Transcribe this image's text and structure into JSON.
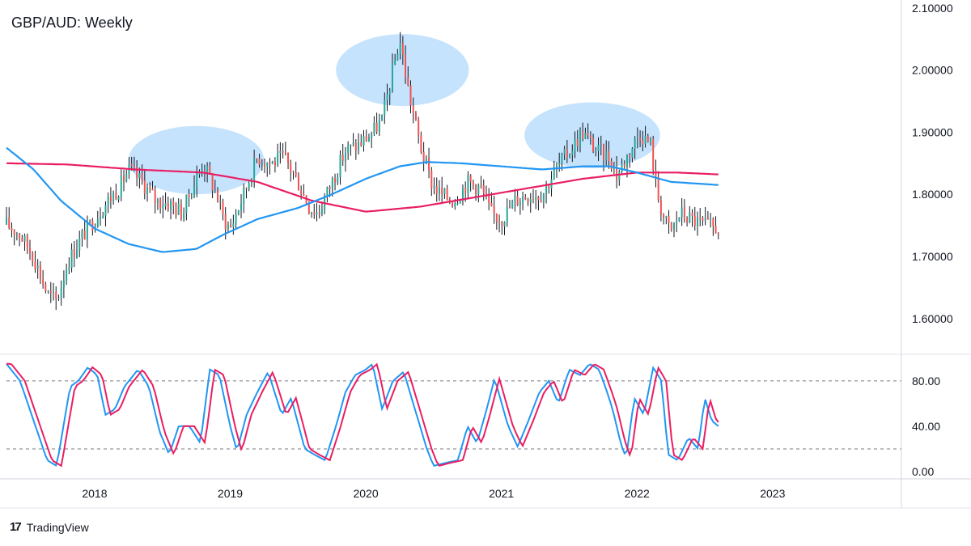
{
  "title": "GBP/AUD: Weekly",
  "brand": {
    "name": "TradingView",
    "logo_icon": "tradingview-logo-icon"
  },
  "chart_data": {
    "type": "candlestick",
    "title": "GBP/AUD: Weekly",
    "price_axis": {
      "ticks": [
        "2.10000",
        "2.00000",
        "1.90000",
        "1.80000",
        "1.70000",
        "1.60000"
      ],
      "tick_values": [
        2.1,
        2.0,
        1.9,
        1.8,
        1.7,
        1.6
      ],
      "range": [
        1.545,
        2.105
      ]
    },
    "time_axis": {
      "ticks": [
        "2018",
        "2019",
        "2020",
        "2021",
        "2022",
        "2023"
      ],
      "tick_years": [
        2018,
        2019,
        2020,
        2021,
        2022,
        2023
      ],
      "range": [
        2017.35,
        2023.95
      ]
    },
    "colors": {
      "up_candle": "#26a69a",
      "down_candle": "#ef5350",
      "candle_wick": "#131722",
      "ma_slow": "#e91e63",
      "ma_fast": "#2196f3",
      "stoch_k": "#2196f3",
      "stoch_d": "#e91e63",
      "highlight": "#bbdefb"
    },
    "close_anchors": [
      [
        2017.35,
        1.752
      ],
      [
        2017.45,
        1.735
      ],
      [
        2017.55,
        1.7
      ],
      [
        2017.65,
        1.64
      ],
      [
        2017.72,
        1.628
      ],
      [
        2017.8,
        1.69
      ],
      [
        2017.9,
        1.73
      ],
      [
        2018.0,
        1.76
      ],
      [
        2018.1,
        1.79
      ],
      [
        2018.18,
        1.81
      ],
      [
        2018.25,
        1.84
      ],
      [
        2018.35,
        1.82
      ],
      [
        2018.45,
        1.79
      ],
      [
        2018.55,
        1.785
      ],
      [
        2018.65,
        1.77
      ],
      [
        2018.7,
        1.8
      ],
      [
        2018.8,
        1.85
      ],
      [
        2018.9,
        1.8
      ],
      [
        2018.95,
        1.76
      ],
      [
        2019.0,
        1.745
      ],
      [
        2019.1,
        1.8
      ],
      [
        2019.2,
        1.86
      ],
      [
        2019.3,
        1.85
      ],
      [
        2019.4,
        1.86
      ],
      [
        2019.5,
        1.82
      ],
      [
        2019.58,
        1.78
      ],
      [
        2019.65,
        1.77
      ],
      [
        2019.75,
        1.82
      ],
      [
        2019.85,
        1.87
      ],
      [
        2019.95,
        1.88
      ],
      [
        2020.05,
        1.9
      ],
      [
        2020.12,
        1.92
      ],
      [
        2020.2,
        2.0
      ],
      [
        2020.25,
        2.05
      ],
      [
        2020.32,
        1.96
      ],
      [
        2020.4,
        1.88
      ],
      [
        2020.48,
        1.82
      ],
      [
        2020.55,
        1.8
      ],
      [
        2020.65,
        1.79
      ],
      [
        2020.75,
        1.82
      ],
      [
        2020.85,
        1.81
      ],
      [
        2020.92,
        1.77
      ],
      [
        2021.0,
        1.76
      ],
      [
        2021.1,
        1.79
      ],
      [
        2021.2,
        1.8
      ],
      [
        2021.3,
        1.8
      ],
      [
        2021.4,
        1.84
      ],
      [
        2021.5,
        1.87
      ],
      [
        2021.6,
        1.9
      ],
      [
        2021.7,
        1.87
      ],
      [
        2021.8,
        1.86
      ],
      [
        2021.85,
        1.83
      ],
      [
        2021.95,
        1.87
      ],
      [
        2022.02,
        1.9
      ],
      [
        2022.1,
        1.88
      ],
      [
        2022.15,
        1.8
      ],
      [
        2022.2,
        1.76
      ],
      [
        2022.25,
        1.74
      ],
      [
        2022.32,
        1.77
      ],
      [
        2022.4,
        1.76
      ],
      [
        2022.5,
        1.75
      ],
      [
        2022.6,
        1.745
      ]
    ],
    "moving_averages": [
      {
        "color_key": "ma_slow",
        "points": [
          [
            2017.35,
            1.85
          ],
          [
            2017.8,
            1.848
          ],
          [
            2018.3,
            1.84
          ],
          [
            2018.8,
            1.835
          ],
          [
            2019.2,
            1.82
          ],
          [
            2019.6,
            1.79
          ],
          [
            2020.0,
            1.772
          ],
          [
            2020.4,
            1.78
          ],
          [
            2020.8,
            1.795
          ],
          [
            2021.2,
            1.81
          ],
          [
            2021.6,
            1.825
          ],
          [
            2022.0,
            1.835
          ],
          [
            2022.3,
            1.835
          ],
          [
            2022.6,
            1.832
          ]
        ]
      },
      {
        "color_key": "ma_fast",
        "points": [
          [
            2017.35,
            1.875
          ],
          [
            2017.55,
            1.84
          ],
          [
            2017.75,
            1.79
          ],
          [
            2018.0,
            1.745
          ],
          [
            2018.25,
            1.72
          ],
          [
            2018.5,
            1.707
          ],
          [
            2018.75,
            1.712
          ],
          [
            2018.95,
            1.735
          ],
          [
            2019.2,
            1.76
          ],
          [
            2019.5,
            1.778
          ],
          [
            2019.75,
            1.8
          ],
          [
            2020.0,
            1.825
          ],
          [
            2020.25,
            1.845
          ],
          [
            2020.45,
            1.852
          ],
          [
            2020.7,
            1.85
          ],
          [
            2021.0,
            1.845
          ],
          [
            2021.3,
            1.84
          ],
          [
            2021.6,
            1.845
          ],
          [
            2021.8,
            1.845
          ],
          [
            2022.0,
            1.835
          ],
          [
            2022.25,
            1.82
          ],
          [
            2022.6,
            1.815
          ]
        ]
      }
    ],
    "highlights": [
      {
        "label": "",
        "center": [
          2018.75,
          1.855
        ],
        "radius_years": 0.5,
        "radius_price": 0.055
      },
      {
        "label": "",
        "center": [
          2020.27,
          2.0
        ],
        "radius_years": 0.49,
        "radius_price": 0.058
      },
      {
        "label": "",
        "center": [
          2021.67,
          1.895
        ],
        "radius_years": 0.5,
        "radius_price": 0.053
      }
    ],
    "stochastic": {
      "y_ticks": [
        "80.00",
        "40.00",
        "0.00"
      ],
      "y_tick_values": [
        80,
        40,
        0
      ],
      "range": [
        -5,
        102
      ],
      "levels": [
        80,
        20
      ],
      "anchors": [
        [
          2017.35,
          95
        ],
        [
          2017.45,
          80
        ],
        [
          2017.55,
          45
        ],
        [
          2017.65,
          10
        ],
        [
          2017.72,
          5
        ],
        [
          2017.82,
          75
        ],
        [
          2017.88,
          80
        ],
        [
          2017.95,
          92
        ],
        [
          2018.02,
          85
        ],
        [
          2018.08,
          50
        ],
        [
          2018.15,
          55
        ],
        [
          2018.22,
          75
        ],
        [
          2018.32,
          90
        ],
        [
          2018.4,
          75
        ],
        [
          2018.48,
          35
        ],
        [
          2018.55,
          15
        ],
        [
          2018.62,
          40
        ],
        [
          2018.7,
          40
        ],
        [
          2018.78,
          25
        ],
        [
          2018.85,
          90
        ],
        [
          2018.92,
          85
        ],
        [
          2019.0,
          40
        ],
        [
          2019.05,
          18
        ],
        [
          2019.12,
          50
        ],
        [
          2019.2,
          70
        ],
        [
          2019.28,
          88
        ],
        [
          2019.38,
          50
        ],
        [
          2019.45,
          65
        ],
        [
          2019.55,
          20
        ],
        [
          2019.62,
          15
        ],
        [
          2019.7,
          10
        ],
        [
          2019.78,
          40
        ],
        [
          2019.85,
          70
        ],
        [
          2019.92,
          85
        ],
        [
          2020.0,
          90
        ],
        [
          2020.05,
          95
        ],
        [
          2020.12,
          55
        ],
        [
          2020.2,
          80
        ],
        [
          2020.28,
          88
        ],
        [
          2020.35,
          60
        ],
        [
          2020.45,
          20
        ],
        [
          2020.5,
          5
        ],
        [
          2020.6,
          8
        ],
        [
          2020.68,
          10
        ],
        [
          2020.75,
          40
        ],
        [
          2020.82,
          25
        ],
        [
          2020.88,
          50
        ],
        [
          2020.95,
          82
        ],
        [
          2021.05,
          40
        ],
        [
          2021.12,
          22
        ],
        [
          2021.2,
          45
        ],
        [
          2021.28,
          70
        ],
        [
          2021.35,
          80
        ],
        [
          2021.42,
          60
        ],
        [
          2021.5,
          90
        ],
        [
          2021.58,
          85
        ],
        [
          2021.65,
          95
        ],
        [
          2021.72,
          90
        ],
        [
          2021.78,
          70
        ],
        [
          2021.82,
          55
        ],
        [
          2021.88,
          25
        ],
        [
          2021.92,
          12
        ],
        [
          2021.98,
          65
        ],
        [
          2022.05,
          50
        ],
        [
          2022.12,
          92
        ],
        [
          2022.18,
          80
        ],
        [
          2022.23,
          15
        ],
        [
          2022.3,
          10
        ],
        [
          2022.38,
          30
        ],
        [
          2022.45,
          20
        ],
        [
          2022.5,
          65
        ],
        [
          2022.55,
          45
        ],
        [
          2022.6,
          40
        ]
      ]
    }
  }
}
